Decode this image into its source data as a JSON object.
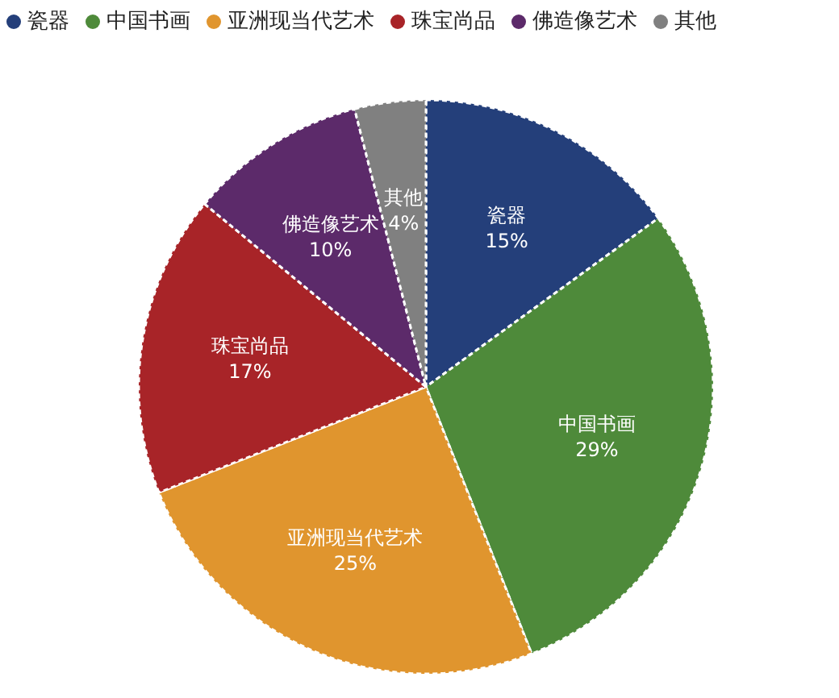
{
  "chart_data": {
    "type": "pie",
    "categories": [
      "瓷器",
      "中国书画",
      "亚洲现当代艺术",
      "珠宝尚品",
      "佛造像艺术",
      "其他"
    ],
    "values": [
      15,
      29,
      25,
      17,
      10,
      4
    ],
    "colors": [
      "#243f7a",
      "#4e8a3a",
      "#e0952e",
      "#a82428",
      "#5c2a6a",
      "#808080"
    ],
    "value_labels": [
      "15%",
      "29%",
      "25%",
      "17%",
      "10%",
      "4%"
    ],
    "legend": "top"
  }
}
